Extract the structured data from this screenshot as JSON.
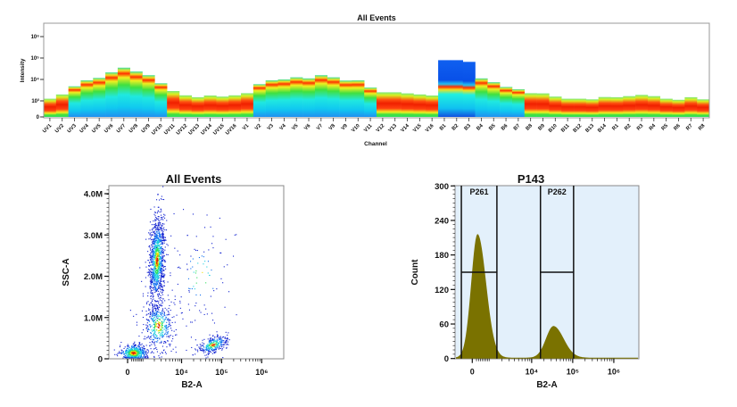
{
  "chart_data": [
    {
      "type": "heatmap",
      "title": "All Events",
      "xlabel": "Channel",
      "ylabel": "Intensity",
      "y_scale": "log",
      "y_tick_labels": [
        "0",
        "10³",
        "10⁴",
        "10⁵",
        "10⁶"
      ],
      "y_tick_values_log10": [
        null,
        3,
        4,
        5,
        6
      ],
      "colormap": [
        "#0030e0",
        "#00a0ff",
        "#00f0f0",
        "#30e030",
        "#ffff00",
        "#ff2000"
      ],
      "categories": [
        "UV1",
        "UV2",
        "UV3",
        "UV4",
        "UV5",
        "UV6",
        "UV7",
        "UV8",
        "UV9",
        "UV10",
        "UV11",
        "UV12",
        "UV13",
        "UV14",
        "UV15",
        "UV16",
        "V1",
        "V2",
        "V3",
        "V4",
        "V5",
        "V6",
        "V7",
        "V8",
        "V9",
        "V10",
        "V11",
        "V12",
        "V13",
        "V14",
        "V15",
        "V16",
        "B1",
        "B2",
        "B3",
        "B4",
        "B5",
        "B6",
        "B7",
        "B8",
        "B9",
        "B10",
        "B11",
        "B12",
        "B13",
        "B14",
        "R1",
        "R2",
        "R3",
        "R4",
        "R5",
        "R6",
        "R7",
        "R8"
      ],
      "max_intensity_log10": [
        3.1,
        3.3,
        3.68,
        3.96,
        4.07,
        4.33,
        4.55,
        4.37,
        4.2,
        3.82,
        3.46,
        3.26,
        3.17,
        3.25,
        3.2,
        3.26,
        3.36,
        3.78,
        3.96,
        4.0,
        4.1,
        4.05,
        4.2,
        4.1,
        3.95,
        3.96,
        3.62,
        3.4,
        3.4,
        3.35,
        3.3,
        3.25,
        4.9,
        4.9,
        4.82,
        4.05,
        3.87,
        3.65,
        3.54,
        3.36,
        3.35,
        3.2,
        3.1,
        3.1,
        3.07,
        3.18,
        3.17,
        3.22,
        3.28,
        3.22,
        3.1,
        3.05,
        3.17,
        3.07
      ],
      "distribution_profile": [
        "red",
        "red",
        "spread",
        "spread",
        "spread",
        "spread",
        "spread",
        "spread",
        "spread",
        "spread",
        "red",
        "red",
        "red",
        "red",
        "red",
        "red",
        "red",
        "spread",
        "spread",
        "spread",
        "spread",
        "spread",
        "spread",
        "spread",
        "spread",
        "spread",
        "spread",
        "red",
        "red",
        "red",
        "red",
        "red",
        "blue",
        "blue",
        "blue",
        "spread",
        "spread",
        "spread",
        "spread",
        "red",
        "red",
        "red",
        "red",
        "red",
        "red",
        "red",
        "red",
        "red",
        "red",
        "red",
        "red",
        "red",
        "red",
        "red"
      ]
    },
    {
      "type": "scatter",
      "title": "All Events",
      "xlabel": "B2-A",
      "ylabel": "SSC-A",
      "x_scale": "biexponential",
      "x_tick_labels": [
        "0",
        "10⁴",
        "10⁵",
        "10⁶"
      ],
      "x_tick_values": [
        0,
        10000,
        100000,
        1000000
      ],
      "y_tick_labels": [
        "0",
        "1.0M",
        "2.0M",
        "3.0M",
        "4.0M"
      ],
      "y_tick_values": [
        0,
        1000000,
        2000000,
        3000000,
        4000000
      ],
      "ylim": [
        0,
        4200000
      ],
      "colormap": "density (blue → cyan → green → yellow → red)",
      "populations": [
        {
          "x_center": 300,
          "y_center": 150000,
          "relative_size": 0.22
        },
        {
          "x_center": 2300,
          "y_center": 2400000,
          "relative_size": 0.45
        },
        {
          "x_center": 2500,
          "y_center": 800000,
          "relative_size": 0.16
        },
        {
          "x_center": 60000,
          "y_center": 350000,
          "relative_size": 0.12
        },
        {
          "x_center": 30000,
          "y_center": 2000000,
          "relative_size": 0.05
        }
      ]
    },
    {
      "type": "area",
      "title": "P143",
      "xlabel": "B2-A",
      "ylabel": "Count",
      "x_scale": "biexponential",
      "x_tick_labels": [
        "0",
        "10⁴",
        "10⁵",
        "10⁶"
      ],
      "x_tick_values": [
        0,
        10000,
        100000,
        1000000
      ],
      "y_tick_labels": [
        "0",
        "60",
        "120",
        "180",
        "240",
        "300"
      ],
      "y_tick_values": [
        0,
        60,
        120,
        180,
        240,
        300
      ],
      "ylim": [
        0,
        300
      ],
      "fill_color": "#7a7200",
      "background_color": "#e3f0fb",
      "peaks": [
        {
          "x_center": 250,
          "peak_count": 215
        },
        {
          "x_center": 34000,
          "peak_count": 55
        }
      ],
      "gates": [
        {
          "name": "P261",
          "x_range": [
            -540,
            1500
          ],
          "level": 150
        },
        {
          "name": "P262",
          "x_range": [
            16400,
            105000
          ],
          "level": 150
        }
      ]
    }
  ]
}
